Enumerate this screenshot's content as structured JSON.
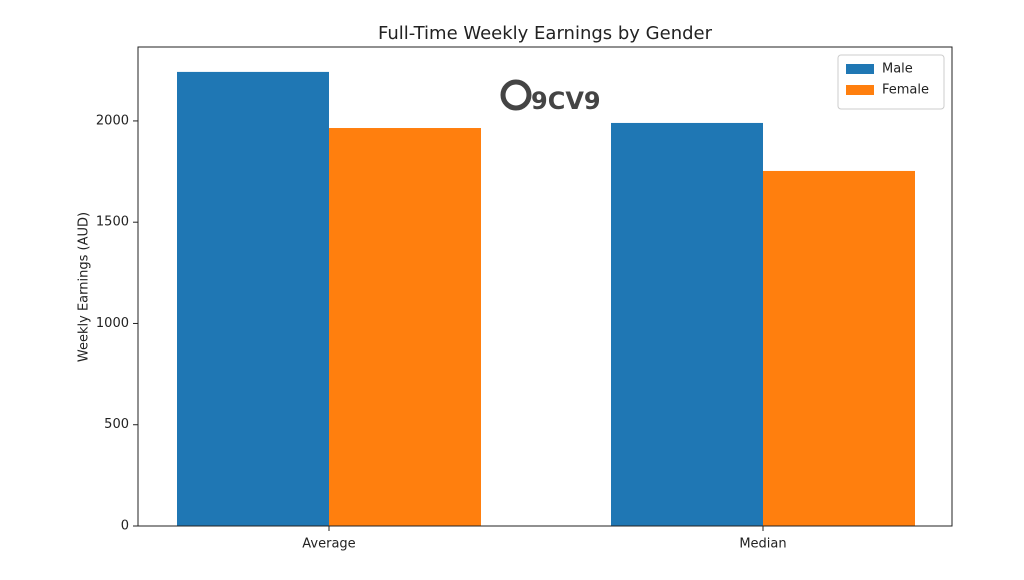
{
  "chart_data": {
    "type": "bar",
    "title": "Full-Time Weekly Earnings by Gender",
    "y_label": "Weekly Earnings (AUD)",
    "watermark": "9CV9",
    "categories": [
      "Average",
      "Median"
    ],
    "series": [
      {
        "name": "Male",
        "color": "#1f77b4",
        "values": [
          2242,
          1990
        ]
      },
      {
        "name": "Female",
        "color": "#ff7f0e",
        "values": [
          1965,
          1753
        ]
      }
    ],
    "ylim": [
      0,
      2365
    ],
    "yticks": [
      0,
      500,
      1000,
      1500,
      2000
    ],
    "legend": "upper right",
    "grid": false
  }
}
